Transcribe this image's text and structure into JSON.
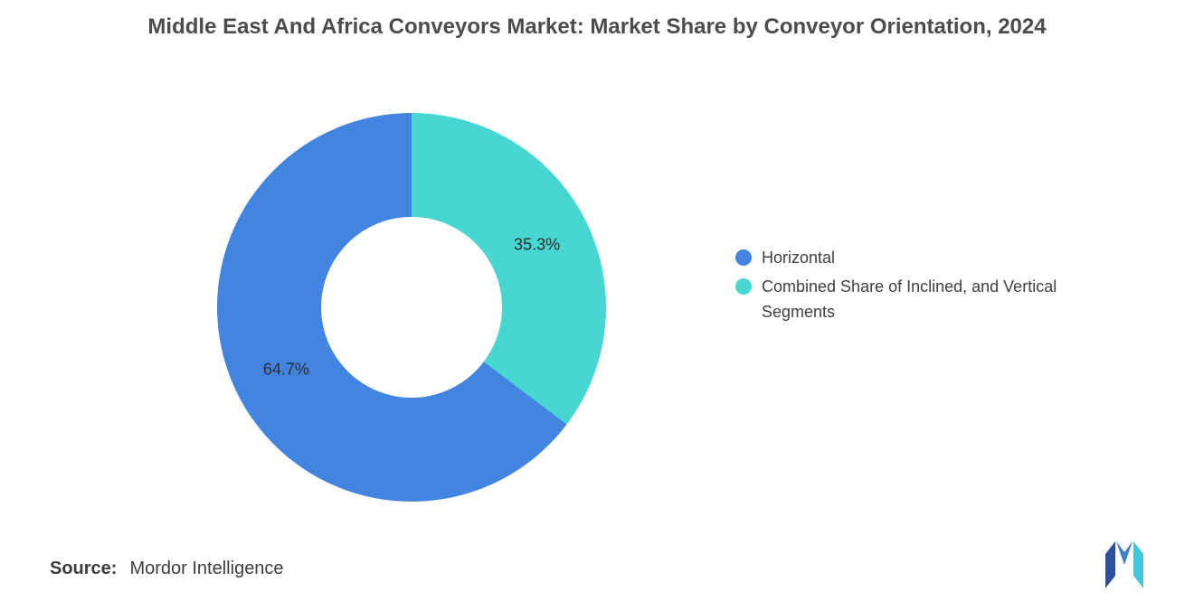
{
  "title": "Middle East And Africa Conveyors Market: Market Share by Conveyor Orientation, 2024",
  "chart_data": {
    "type": "pie",
    "subtype": "donut",
    "title": "Middle East And Africa Conveyors Market: Market Share by Conveyor Orientation, 2024",
    "start_angle_deg": 0,
    "direction": "clockwise",
    "legend_position": "right",
    "segments": [
      {
        "label": "Combined Share of Inclined, and Vertical Segments",
        "value": 35.3,
        "pct_label": "35.3%",
        "color": "#47D6D2"
      },
      {
        "label": "Horizontal",
        "value": 64.7,
        "pct_label": "64.7%",
        "color": "#4285E0"
      }
    ]
  },
  "legend": {
    "items": [
      {
        "label": "Horizontal",
        "color": "#4285E0"
      },
      {
        "label": "Combined Share of Inclined, and Vertical Segments",
        "color": "#47D6D2"
      }
    ]
  },
  "source": {
    "prefix": "Source:",
    "text": "Mordor Intelligence"
  },
  "logo": {
    "name": "mordor-intelligence-logo",
    "colors": {
      "dark": "#2D4F9E",
      "mid": "#3C7FD0",
      "light": "#41C8E0"
    }
  }
}
